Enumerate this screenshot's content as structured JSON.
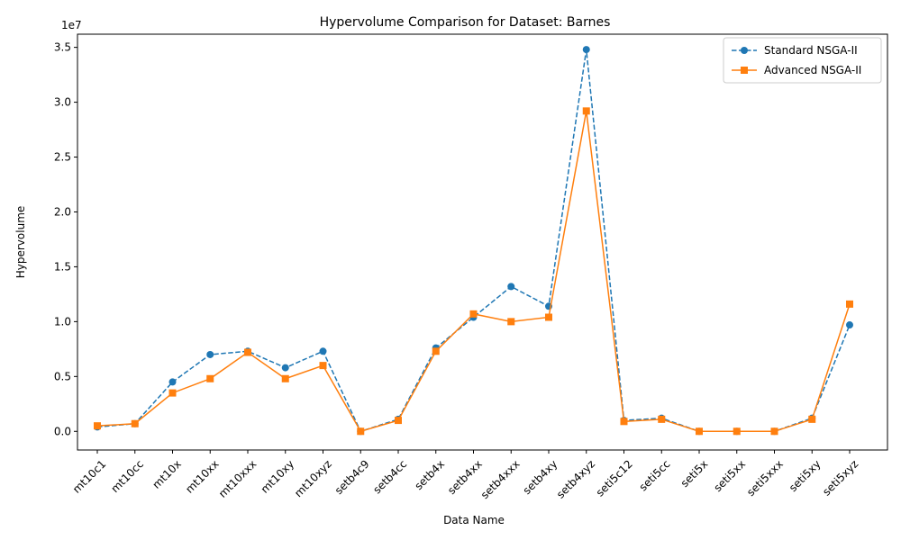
{
  "chart_data": {
    "type": "line",
    "title": "Hypervolume Comparison for Dataset: Barnes",
    "xlabel": "Data Name",
    "ylabel": "Hypervolume",
    "y_offset_text": "1e7",
    "categories": [
      "mt10c1",
      "mt10cc",
      "mt10x",
      "mt10xx",
      "mt10xxx",
      "mt10xy",
      "mt10xyz",
      "setb4c9",
      "setb4cc",
      "setb4x",
      "setb4xx",
      "setb4xxx",
      "setb4xy",
      "setb4xyz",
      "seti5c12",
      "seti5cc",
      "seti5x",
      "seti5xx",
      "seti5xxx",
      "seti5xy",
      "seti5xyz"
    ],
    "yticks": [
      0.0,
      0.5,
      1.0,
      1.5,
      2.0,
      2.5,
      3.0,
      3.5
    ],
    "ytick_labels": [
      "0.0",
      "0.5",
      "1.0",
      "1.5",
      "2.0",
      "2.5",
      "3.0",
      "3.5"
    ],
    "ylim": [
      -0.17,
      3.62
    ],
    "grid": false,
    "legend_position": "top-right",
    "series": [
      {
        "name": "Standard NSGA-II",
        "color": "#1f77b4",
        "linestyle": "dashed",
        "marker": "circle",
        "values": [
          0.04,
          0.07,
          0.45,
          0.7,
          0.73,
          0.58,
          0.73,
          0.0,
          0.11,
          0.76,
          1.04,
          1.32,
          1.14,
          3.48,
          0.1,
          0.12,
          0.0,
          0.0,
          0.0,
          0.12,
          0.97
        ]
      },
      {
        "name": "Advanced NSGA-II",
        "color": "#ff7f0e",
        "linestyle": "solid",
        "marker": "square",
        "values": [
          0.05,
          0.07,
          0.35,
          0.48,
          0.72,
          0.48,
          0.6,
          0.0,
          0.1,
          0.73,
          1.07,
          1.0,
          1.04,
          2.92,
          0.09,
          0.11,
          0.0,
          0.0,
          0.0,
          0.11,
          1.16
        ]
      }
    ]
  }
}
